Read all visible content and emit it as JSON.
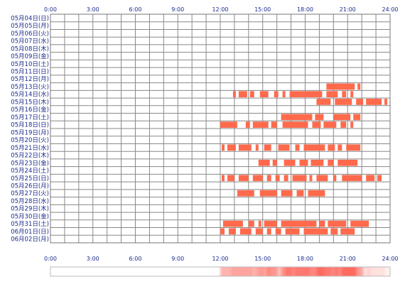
{
  "chart_data": {
    "type": "timeline",
    "title": "",
    "xlabel": "",
    "ylabel": "",
    "x_range_hours": [
      0,
      24
    ],
    "x_ticks": [
      "0:00",
      "3:00",
      "6:00",
      "9:00",
      "12:00",
      "15:00",
      "18:00",
      "21:00",
      "24:00"
    ],
    "bar_color": "#ff6a4d",
    "grid_color": "#888888",
    "label_color": "#1a2a8c",
    "rows": [
      {
        "label": "05月04日(日)",
        "intervals": []
      },
      {
        "label": "05月05日(月)",
        "intervals": []
      },
      {
        "label": "05月06日(火)",
        "intervals": []
      },
      {
        "label": "05月07日(水)",
        "intervals": []
      },
      {
        "label": "05月08日(木)",
        "intervals": []
      },
      {
        "label": "05月09日(金)",
        "intervals": []
      },
      {
        "label": "05月10日(土)",
        "intervals": []
      },
      {
        "label": "05月11日(日)",
        "intervals": []
      },
      {
        "label": "05月12日(月)",
        "intervals": []
      },
      {
        "label": "05月13日(火)",
        "intervals": [
          [
            19.5,
            21.5
          ],
          [
            21.7,
            21.9
          ]
        ]
      },
      {
        "label": "05月14日(水)",
        "intervals": [
          [
            12.9,
            13.1
          ],
          [
            13.3,
            13.9
          ],
          [
            14.1,
            14.4
          ],
          [
            14.8,
            15.4
          ],
          [
            15.8,
            16.1
          ],
          [
            16.4,
            16.6
          ],
          [
            16.9,
            19.2
          ],
          [
            19.5,
            20.3
          ],
          [
            20.6,
            20.9
          ],
          [
            21.2,
            21.4
          ]
        ]
      },
      {
        "label": "05月15日(木)",
        "intervals": [
          [
            18.8,
            19.8
          ],
          [
            20.1,
            21.3
          ],
          [
            21.6,
            22.1
          ],
          [
            22.3,
            23.4
          ],
          [
            23.6,
            23.8
          ]
        ]
      },
      {
        "label": "05月16日(金)",
        "intervals": []
      },
      {
        "label": "05月17日(土)",
        "intervals": [
          [
            16.3,
            18.5
          ],
          [
            18.7,
            19.3
          ],
          [
            20.0,
            21.2
          ],
          [
            21.4,
            21.9
          ]
        ]
      },
      {
        "label": "05月18日(日)",
        "intervals": [
          [
            12.0,
            13.2
          ],
          [
            13.8,
            14.1
          ],
          [
            14.3,
            15.4
          ],
          [
            15.6,
            16.0
          ],
          [
            16.4,
            18.2
          ],
          [
            18.5,
            19.1
          ],
          [
            19.3,
            20.2
          ],
          [
            20.5,
            20.9
          ],
          [
            21.2,
            21.4
          ]
        ]
      },
      {
        "label": "05月19日(月)",
        "intervals": []
      },
      {
        "label": "05月20日(火)",
        "intervals": []
      },
      {
        "label": "05月21日(水)",
        "intervals": [
          [
            12.1,
            12.3
          ],
          [
            12.5,
            13.1
          ],
          [
            13.3,
            14.2
          ],
          [
            14.5,
            14.7
          ],
          [
            15.1,
            15.6
          ],
          [
            16.1,
            16.9
          ],
          [
            17.3,
            17.6
          ],
          [
            17.9,
            19.4
          ],
          [
            19.6,
            20.1
          ],
          [
            20.3,
            20.6
          ],
          [
            20.9,
            21.9
          ]
        ]
      },
      {
        "label": "05月22日(木)",
        "intervals": []
      },
      {
        "label": "05月23日(金)",
        "intervals": [
          [
            14.7,
            15.5
          ],
          [
            15.7,
            16.0
          ],
          [
            16.5,
            17.3
          ],
          [
            17.6,
            18.2
          ],
          [
            18.4,
            19.3
          ],
          [
            19.6,
            20.0
          ],
          [
            20.3,
            21.7
          ]
        ]
      },
      {
        "label": "05月24日(土)",
        "intervals": []
      },
      {
        "label": "05月25日(日)",
        "intervals": [
          [
            12.1,
            12.3
          ],
          [
            12.5,
            13.0
          ],
          [
            13.3,
            14.0
          ],
          [
            14.3,
            15.0
          ],
          [
            15.3,
            15.6
          ],
          [
            15.9,
            16.2
          ],
          [
            16.5,
            16.8
          ],
          [
            17.1,
            18.1
          ],
          [
            18.3,
            18.5
          ],
          [
            18.8,
            19.6
          ],
          [
            20.0,
            20.2
          ],
          [
            20.6,
            22.0
          ],
          [
            22.3,
            22.9
          ],
          [
            23.1,
            23.4
          ]
        ]
      },
      {
        "label": "05月26日(月)",
        "intervals": []
      },
      {
        "label": "05月27日(火)",
        "intervals": [
          [
            13.2,
            14.4
          ],
          [
            14.8,
            16.0
          ],
          [
            16.3,
            17.1
          ],
          [
            17.4,
            17.9
          ],
          [
            18.2,
            19.4
          ]
        ]
      },
      {
        "label": "05月28日(水)",
        "intervals": []
      },
      {
        "label": "05月29日(木)",
        "intervals": []
      },
      {
        "label": "05月30日(金)",
        "intervals": []
      },
      {
        "label": "05月31日(土)",
        "intervals": [
          [
            12.2,
            13.6
          ],
          [
            14.0,
            14.4
          ],
          [
            14.7,
            14.9
          ],
          [
            15.1,
            16.0
          ],
          [
            16.3,
            18.8
          ],
          [
            19.0,
            19.4
          ],
          [
            19.6,
            20.9
          ],
          [
            21.2,
            22.5
          ]
        ]
      },
      {
        "label": "06月01日(日)",
        "intervals": [
          [
            12.0,
            12.3
          ],
          [
            12.6,
            13.1
          ],
          [
            13.4,
            14.2
          ],
          [
            14.5,
            15.0
          ],
          [
            15.3,
            15.6
          ],
          [
            15.9,
            16.3
          ],
          [
            16.6,
            17.6
          ],
          [
            17.9,
            19.6
          ],
          [
            19.8,
            20.3
          ],
          [
            20.5,
            21.5
          ]
        ]
      },
      {
        "label": "06月02日(月)",
        "intervals": []
      }
    ]
  }
}
